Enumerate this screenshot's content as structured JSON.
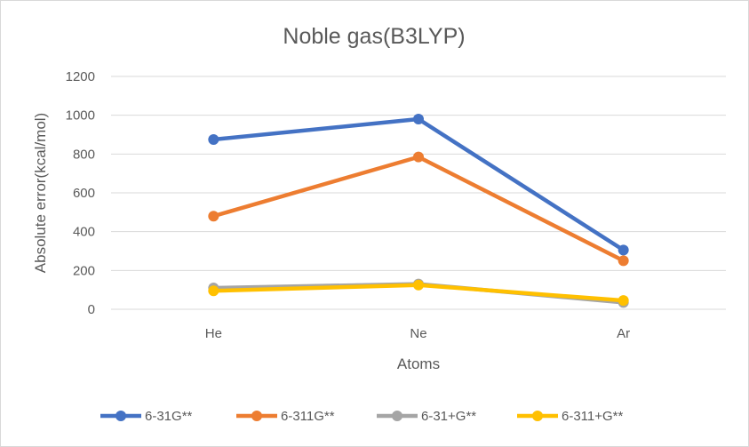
{
  "chart_data": {
    "type": "line",
    "title": "Noble gas(B3LYP)",
    "xlabel": "Atoms",
    "ylabel": "Absolute error(kcal/mol)",
    "categories": [
      "He",
      "Ne",
      "Ar"
    ],
    "ylim": [
      0,
      1200
    ],
    "yticks": [
      0,
      200,
      400,
      600,
      800,
      1000,
      1200
    ],
    "grid": true,
    "legend_position": "bottom",
    "series": [
      {
        "name": "6-31G**",
        "color": "#4472C4",
        "values": [
          875,
          980,
          305
        ]
      },
      {
        "name": "6-311G**",
        "color": "#ED7D31",
        "values": [
          480,
          785,
          250
        ]
      },
      {
        "name": "6-31+G**",
        "color": "#A5A5A5",
        "values": [
          110,
          130,
          35
        ]
      },
      {
        "name": "6-311+G**",
        "color": "#FFC000",
        "values": [
          95,
          125,
          45
        ]
      }
    ]
  }
}
